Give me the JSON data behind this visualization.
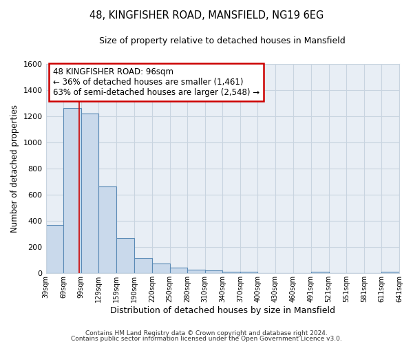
{
  "title1": "48, KINGFISHER ROAD, MANSFIELD, NG19 6EG",
  "title2": "Size of property relative to detached houses in Mansfield",
  "xlabel": "Distribution of detached houses by size in Mansfield",
  "ylabel": "Number of detached properties",
  "bar_left_edges": [
    39,
    69,
    99,
    129,
    159,
    190,
    220,
    250,
    280,
    310,
    340,
    370,
    400,
    430,
    460,
    491,
    521,
    551,
    581,
    611
  ],
  "bar_widths": [
    30,
    30,
    30,
    30,
    31,
    30,
    30,
    30,
    30,
    30,
    30,
    30,
    30,
    30,
    31,
    30,
    30,
    30,
    30,
    30
  ],
  "bar_heights": [
    370,
    1265,
    1220,
    665,
    270,
    115,
    75,
    40,
    25,
    20,
    10,
    10,
    0,
    0,
    0,
    10,
    0,
    0,
    0,
    10
  ],
  "tick_labels": [
    "39sqm",
    "69sqm",
    "99sqm",
    "129sqm",
    "159sqm",
    "190sqm",
    "220sqm",
    "250sqm",
    "280sqm",
    "310sqm",
    "340sqm",
    "370sqm",
    "400sqm",
    "430sqm",
    "460sqm",
    "491sqm",
    "521sqm",
    "551sqm",
    "581sqm",
    "611sqm",
    "641sqm"
  ],
  "tick_positions": [
    39,
    69,
    99,
    129,
    159,
    190,
    220,
    250,
    280,
    310,
    340,
    370,
    400,
    430,
    460,
    491,
    521,
    551,
    581,
    611,
    641
  ],
  "ylim_max": 1600,
  "yticks": [
    0,
    200,
    400,
    600,
    800,
    1000,
    1200,
    1400,
    1600
  ],
  "bar_color": "#c9d9eb",
  "bar_edge_color": "#5a8ab5",
  "grid_color": "#c8d4e0",
  "plot_bg_color": "#e8eef5",
  "vline_x": 96,
  "vline_color": "#cc0000",
  "ann_line1": "48 KINGFISHER ROAD: 96sqm",
  "ann_line2": "← 36% of detached houses are smaller (1,461)",
  "ann_line3": "63% of semi-detached houses are larger (2,548) →",
  "footer1": "Contains HM Land Registry data © Crown copyright and database right 2024.",
  "footer2": "Contains public sector information licensed under the Open Government Licence v3.0."
}
